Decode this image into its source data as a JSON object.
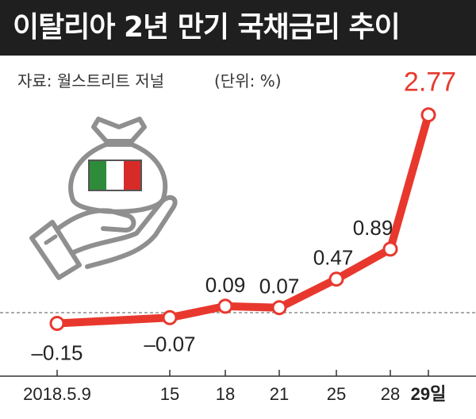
{
  "title": "이탈리아 2년 만기 국채금리 추이",
  "source": "자료: 월스트리트 저널",
  "unit": "(단위: %)",
  "colors": {
    "title_bg": "#1f1f1f",
    "line": "#e8382e",
    "highlight_label": "#e8382e",
    "marker_fill": "#ffffff",
    "icon_gray": "#8f8f8f",
    "flag_green": "#2e8b3a",
    "flag_white": "#ffffff",
    "flag_red": "#d62b27"
  },
  "icon": "money-bag-in-hand-with-italian-flag",
  "chart_data": {
    "type": "line",
    "title": "이탈리아 2년 만기 국채금리 추이",
    "x": [
      "2018.5.9",
      "15",
      "18",
      "21",
      "25",
      "28",
      "29일"
    ],
    "series": [
      {
        "values": [
          -0.15,
          -0.07,
          0.09,
          0.07,
          0.47,
          0.89,
          2.77
        ]
      }
    ],
    "data_labels": [
      "–0.15",
      "–0.07",
      "0.09",
      "0.07",
      "0.47",
      "0.89",
      "2.77"
    ],
    "highlight_last": true,
    "zero_line": "dashed",
    "ylim": [
      -0.5,
      3.1
    ],
    "grid": false,
    "legend": "none"
  }
}
